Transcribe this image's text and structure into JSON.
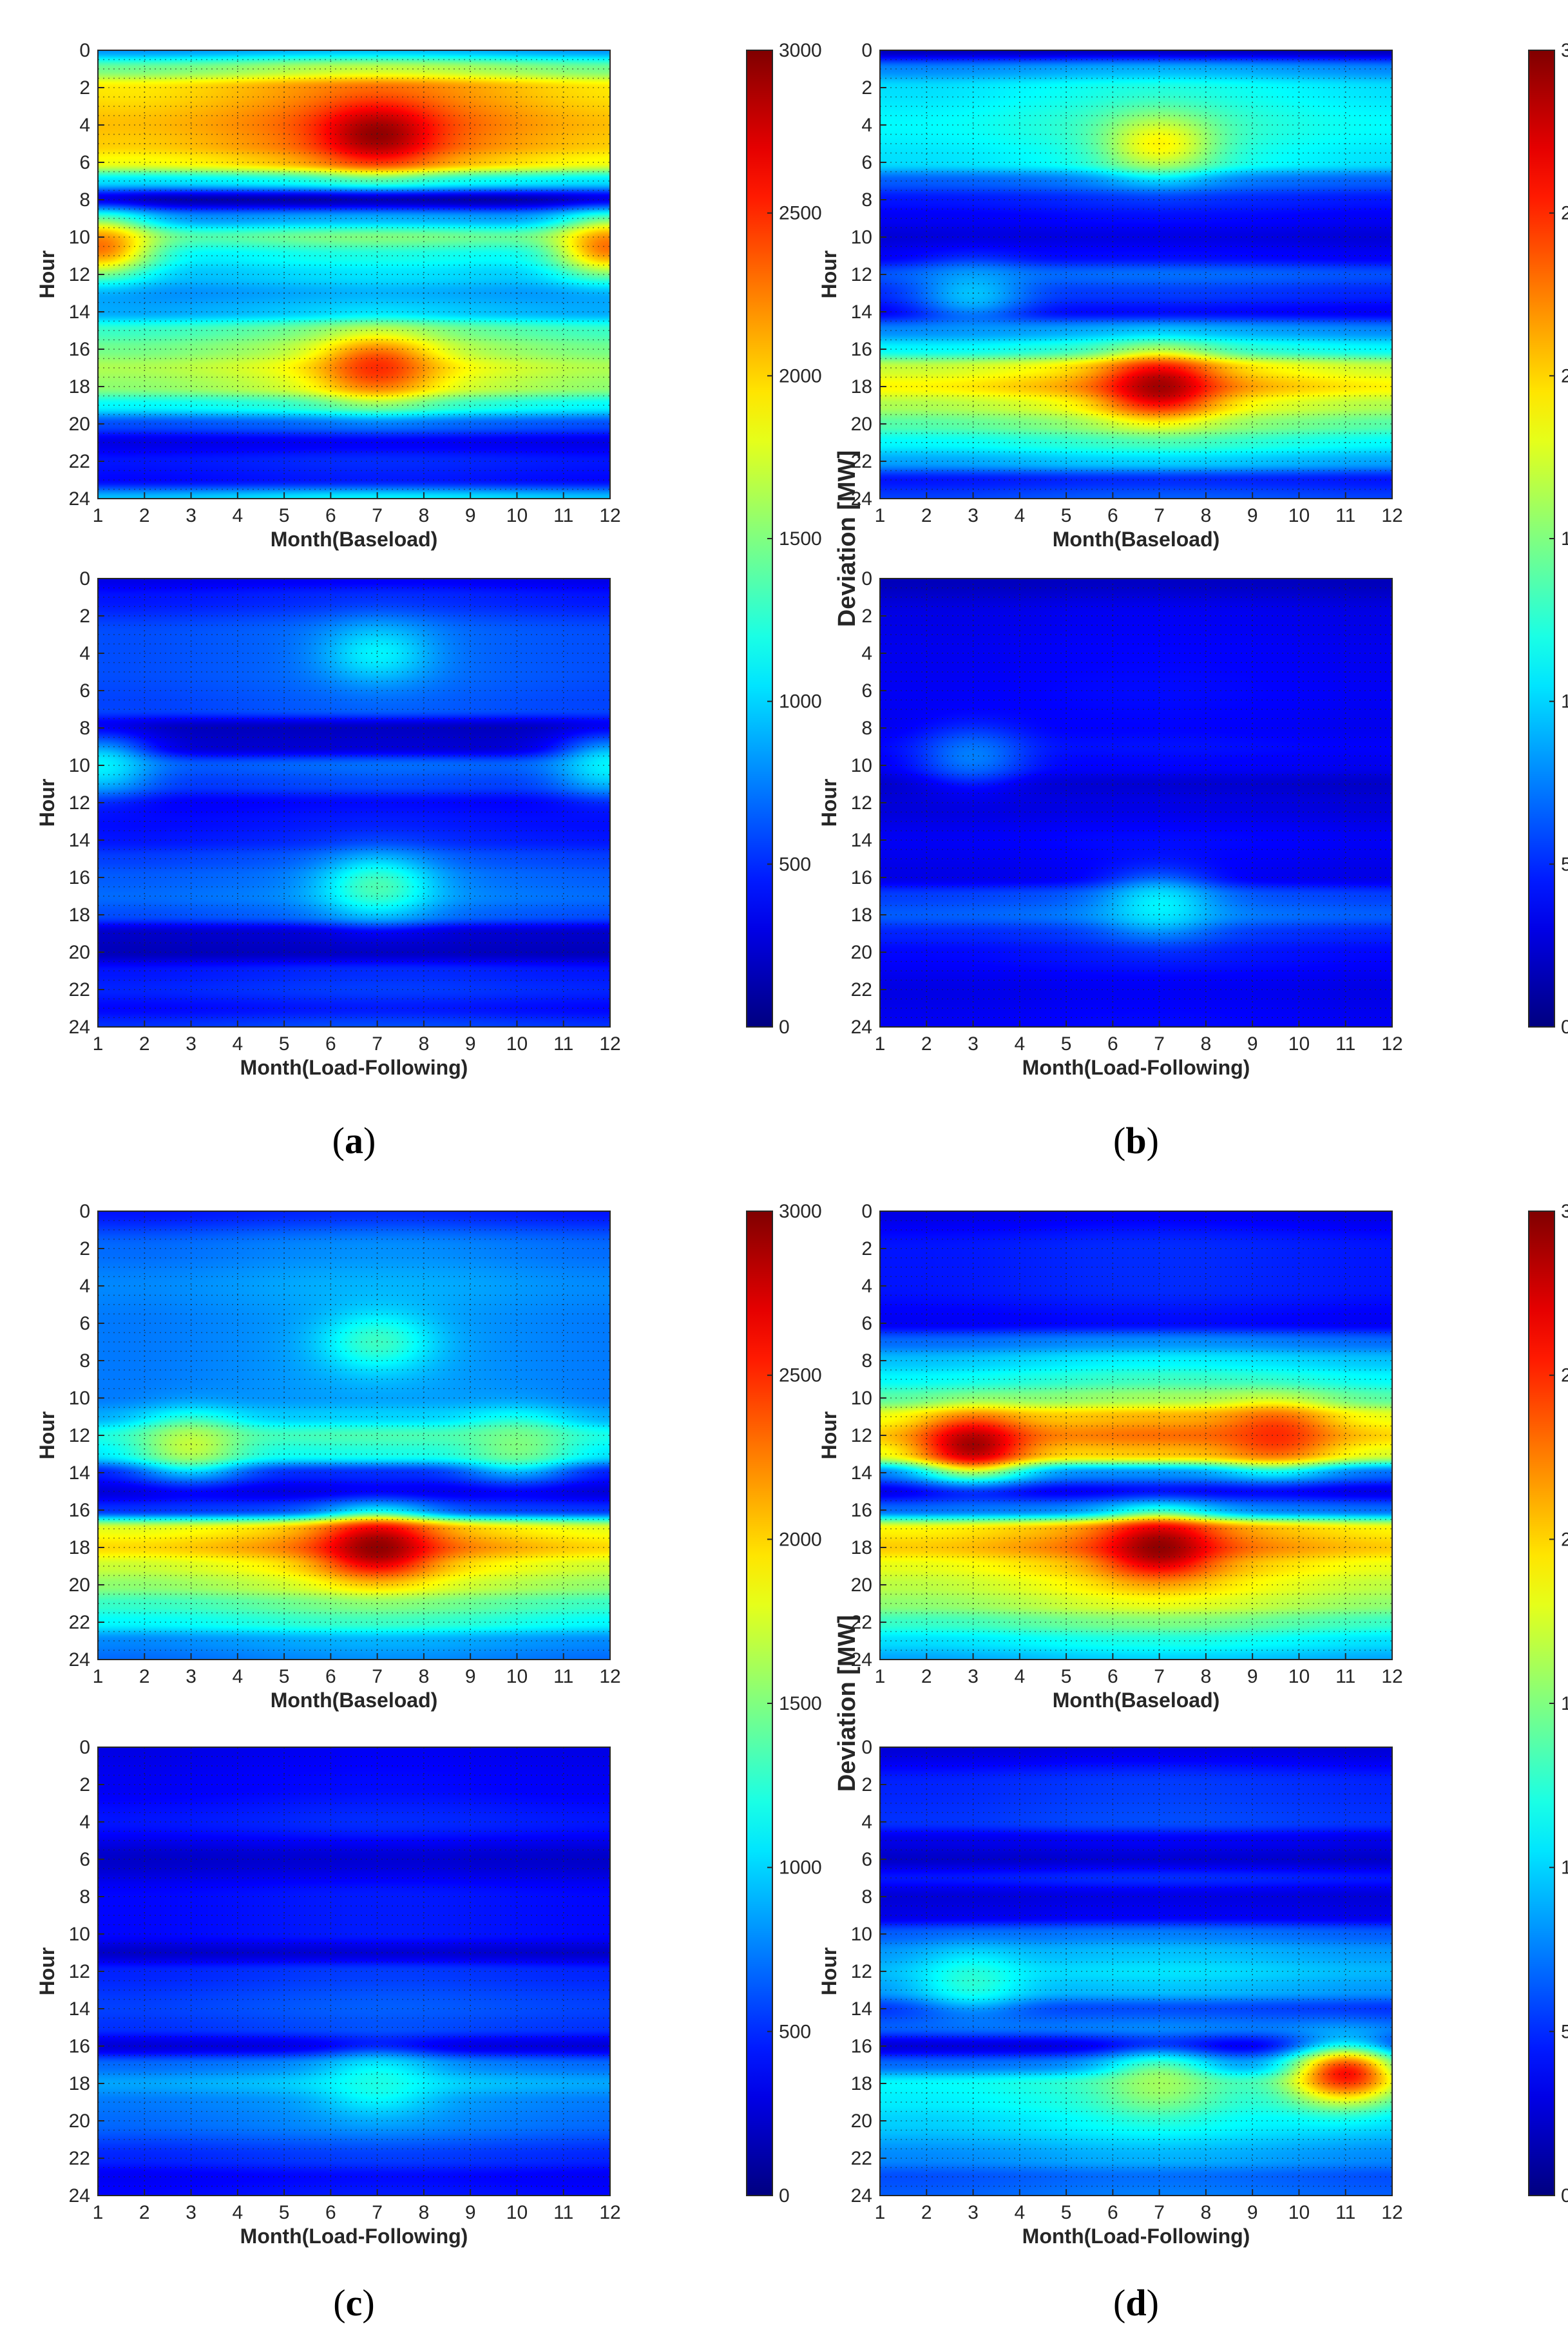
{
  "figure": {
    "colormap": "jet",
    "colorbar": {
      "label": "Deviation [MW]",
      "ticks": [
        "0",
        "500",
        "1000",
        "1500",
        "2000",
        "2500",
        "3000"
      ],
      "range": [
        0,
        3000
      ]
    },
    "y_ticks": [
      "0",
      "2",
      "4",
      "6",
      "8",
      "10",
      "12",
      "14",
      "16",
      "18",
      "20",
      "22",
      "24"
    ],
    "x_ticks": [
      "1",
      "2",
      "3",
      "4",
      "5",
      "6",
      "7",
      "8",
      "9",
      "10",
      "11",
      "12"
    ],
    "panel_labels": [
      {
        "open": "(",
        "letter": "a",
        "close": ")"
      },
      {
        "open": "(",
        "letter": "b",
        "close": ")"
      },
      {
        "open": "(",
        "letter": "c",
        "close": ")"
      },
      {
        "open": "(",
        "letter": "d",
        "close": ")"
      }
    ]
  },
  "chart_data": [
    {
      "type": "heatmap",
      "panel": "a",
      "title": "",
      "xlabel": "Month(Baseload)",
      "ylabel": "Hour",
      "xlim": [
        1,
        12
      ],
      "ylim": [
        0,
        24
      ],
      "zlim": [
        0,
        3000
      ],
      "hour_profile": [
        [
          0,
          950
        ],
        [
          1,
          1700
        ],
        [
          2,
          2250
        ],
        [
          4,
          2400
        ],
        [
          5,
          2350
        ],
        [
          6,
          2150
        ],
        [
          7,
          1200
        ],
        [
          8,
          150
        ],
        [
          9,
          900
        ],
        [
          10,
          1500
        ],
        [
          11,
          1200
        ],
        [
          12,
          1050
        ],
        [
          13,
          900
        ],
        [
          14,
          1000
        ],
        [
          15,
          1500
        ],
        [
          16,
          1700
        ],
        [
          17,
          1900
        ],
        [
          18,
          1800
        ],
        [
          19,
          1300
        ],
        [
          20,
          700
        ],
        [
          21,
          350
        ],
        [
          22,
          500
        ],
        [
          23,
          450
        ],
        [
          24,
          1100
        ]
      ],
      "hotspots": [
        {
          "month": 7,
          "hour": 4.5,
          "value": 2950
        },
        {
          "month": 7,
          "hour": 17,
          "value": 2500
        },
        {
          "month": 1,
          "hour": 10.5,
          "value": 2300
        },
        {
          "month": 12,
          "hour": 10.5,
          "value": 2300
        }
      ]
    },
    {
      "type": "heatmap",
      "panel": "a",
      "title": "",
      "xlabel": "Month(Load-Following)",
      "ylabel": "Hour",
      "xlim": [
        1,
        12
      ],
      "ylim": [
        0,
        24
      ],
      "zlim": [
        0,
        3000
      ],
      "hour_profile": [
        [
          0,
          350
        ],
        [
          1,
          500
        ],
        [
          3,
          700
        ],
        [
          5,
          700
        ],
        [
          7,
          650
        ],
        [
          8,
          200
        ],
        [
          9,
          250
        ],
        [
          10,
          700
        ],
        [
          11,
          600
        ],
        [
          12,
          400
        ],
        [
          13,
          450
        ],
        [
          14,
          500
        ],
        [
          15,
          650
        ],
        [
          16,
          750
        ],
        [
          17,
          800
        ],
        [
          18,
          700
        ],
        [
          19,
          250
        ],
        [
          20,
          200
        ],
        [
          21,
          500
        ],
        [
          22,
          550
        ],
        [
          23,
          450
        ],
        [
          24,
          600
        ]
      ],
      "hotspots": [
        {
          "month": 7,
          "hour": 4,
          "value": 1100
        },
        {
          "month": 7,
          "hour": 16.5,
          "value": 1350
        },
        {
          "month": 1,
          "hour": 10,
          "value": 1100
        },
        {
          "month": 12,
          "hour": 10,
          "value": 1100
        }
      ]
    },
    {
      "type": "heatmap",
      "panel": "b",
      "title": "",
      "xlabel": "Month(Baseload)",
      "ylabel": "Hour",
      "xlim": [
        1,
        12
      ],
      "ylim": [
        0,
        24
      ],
      "zlim": [
        0,
        3000
      ],
      "hour_profile": [
        [
          0,
          200
        ],
        [
          1,
          900
        ],
        [
          2,
          1200
        ],
        [
          4,
          1300
        ],
        [
          6,
          1200
        ],
        [
          7,
          750
        ],
        [
          8,
          500
        ],
        [
          9,
          400
        ],
        [
          10,
          300
        ],
        [
          11,
          400
        ],
        [
          12,
          700
        ],
        [
          13,
          550
        ],
        [
          14,
          400
        ],
        [
          15,
          900
        ],
        [
          16,
          1300
        ],
        [
          17,
          2000
        ],
        [
          18,
          2200
        ],
        [
          19,
          1900
        ],
        [
          20,
          1600
        ],
        [
          21,
          1300
        ],
        [
          22,
          1000
        ],
        [
          23,
          500
        ],
        [
          24,
          650
        ]
      ],
      "hotspots": [
        {
          "month": 7,
          "hour": 5,
          "value": 1900
        },
        {
          "month": 7,
          "hour": 18,
          "value": 2900
        },
        {
          "month": 3,
          "hour": 13,
          "value": 950
        }
      ]
    },
    {
      "type": "heatmap",
      "panel": "b",
      "title": "",
      "xlabel": "Month(Load-Following)",
      "ylabel": "Hour",
      "xlim": [
        1,
        12
      ],
      "ylim": [
        0,
        24
      ],
      "zlim": [
        0,
        3000
      ],
      "hour_profile": [
        [
          0,
          200
        ],
        [
          2,
          350
        ],
        [
          4,
          380
        ],
        [
          6,
          400
        ],
        [
          8,
          380
        ],
        [
          9,
          420
        ],
        [
          10,
          380
        ],
        [
          11,
          250
        ],
        [
          12,
          300
        ],
        [
          14,
          400
        ],
        [
          16,
          350
        ],
        [
          17,
          650
        ],
        [
          18,
          750
        ],
        [
          19,
          550
        ],
        [
          20,
          450
        ],
        [
          22,
          350
        ],
        [
          24,
          400
        ]
      ],
      "hotspots": [
        {
          "month": 7,
          "hour": 17.5,
          "value": 1100
        },
        {
          "month": 3,
          "hour": 9.5,
          "value": 750
        }
      ]
    },
    {
      "type": "heatmap",
      "panel": "c",
      "title": "",
      "xlabel": "Month(Baseload)",
      "ylabel": "Hour",
      "xlim": [
        1,
        12
      ],
      "ylim": [
        0,
        24
      ],
      "zlim": [
        0,
        3000
      ],
      "hour_profile": [
        [
          0,
          500
        ],
        [
          2,
          800
        ],
        [
          4,
          900
        ],
        [
          6,
          850
        ],
        [
          8,
          850
        ],
        [
          10,
          850
        ],
        [
          11,
          1000
        ],
        [
          12,
          1350
        ],
        [
          13,
          1200
        ],
        [
          14,
          500
        ],
        [
          15,
          300
        ],
        [
          16,
          600
        ],
        [
          17,
          2100
        ],
        [
          18,
          2300
        ],
        [
          19,
          2000
        ],
        [
          20,
          1800
        ],
        [
          21,
          1500
        ],
        [
          22,
          1300
        ],
        [
          23,
          900
        ],
        [
          24,
          800
        ]
      ],
      "hotspots": [
        {
          "month": 7,
          "hour": 18,
          "value": 2950
        },
        {
          "month": 7,
          "hour": 7,
          "value": 1300
        },
        {
          "month": 3,
          "hour": 12.5,
          "value": 1700
        },
        {
          "month": 10,
          "hour": 12.5,
          "value": 1500
        }
      ]
    },
    {
      "type": "heatmap",
      "panel": "c",
      "title": "",
      "xlabel": "Month(Load-Following)",
      "ylabel": "Hour",
      "xlim": [
        1,
        12
      ],
      "ylim": [
        0,
        24
      ],
      "zlim": [
        0,
        3000
      ],
      "hour_profile": [
        [
          0,
          350
        ],
        [
          2,
          400
        ],
        [
          4,
          500
        ],
        [
          6,
          250
        ],
        [
          8,
          450
        ],
        [
          10,
          450
        ],
        [
          11,
          250
        ],
        [
          12,
          550
        ],
        [
          14,
          650
        ],
        [
          15,
          600
        ],
        [
          16,
          300
        ],
        [
          17,
          800
        ],
        [
          18,
          1000
        ],
        [
          19,
          850
        ],
        [
          20,
          800
        ],
        [
          22,
          550
        ],
        [
          23,
          400
        ],
        [
          24,
          450
        ]
      ],
      "hotspots": [
        {
          "month": 7,
          "hour": 18,
          "value": 1200
        }
      ]
    },
    {
      "type": "heatmap",
      "panel": "d",
      "title": "",
      "xlabel": "Month(Baseload)",
      "ylabel": "Hour",
      "xlim": [
        1,
        12
      ],
      "ylim": [
        0,
        24
      ],
      "zlim": [
        0,
        3000
      ],
      "hour_profile": [
        [
          0,
          350
        ],
        [
          2,
          500
        ],
        [
          4,
          500
        ],
        [
          6,
          400
        ],
        [
          7,
          800
        ],
        [
          8,
          1100
        ],
        [
          9,
          1300
        ],
        [
          10,
          1600
        ],
        [
          11,
          2100
        ],
        [
          12,
          2300
        ],
        [
          13,
          2050
        ],
        [
          14,
          800
        ],
        [
          15,
          350
        ],
        [
          16,
          800
        ],
        [
          17,
          2200
        ],
        [
          18,
          2350
        ],
        [
          19,
          2100
        ],
        [
          20,
          1950
        ],
        [
          21,
          1800
        ],
        [
          22,
          1500
        ],
        [
          23,
          1200
        ],
        [
          24,
          1000
        ]
      ],
      "hotspots": [
        {
          "month": 3,
          "hour": 12.5,
          "value": 2900
        },
        {
          "month": 7,
          "hour": 18,
          "value": 2950
        },
        {
          "month": 9.5,
          "hour": 12,
          "value": 2500
        }
      ]
    },
    {
      "type": "heatmap",
      "panel": "d",
      "title": "",
      "xlabel": "Month(Load-Following)",
      "ylabel": "Hour",
      "xlim": [
        1,
        12
      ],
      "ylim": [
        0,
        24
      ],
      "zlim": [
        0,
        3000
      ],
      "hour_profile": [
        [
          0,
          300
        ],
        [
          2,
          550
        ],
        [
          4,
          600
        ],
        [
          5,
          350
        ],
        [
          6,
          250
        ],
        [
          7,
          500
        ],
        [
          8,
          300
        ],
        [
          9,
          350
        ],
        [
          10,
          750
        ],
        [
          11,
          950
        ],
        [
          12,
          1050
        ],
        [
          13,
          950
        ],
        [
          14,
          600
        ],
        [
          15,
          750
        ],
        [
          16,
          300
        ],
        [
          17,
          800
        ],
        [
          18,
          1300
        ],
        [
          19,
          1250
        ],
        [
          20,
          1150
        ],
        [
          22,
          900
        ],
        [
          23,
          700
        ],
        [
          24,
          750
        ]
      ],
      "hotspots": [
        {
          "month": 11,
          "hour": 17.5,
          "value": 2600
        },
        {
          "month": 7,
          "hour": 18,
          "value": 1600
        },
        {
          "month": 3,
          "hour": 12.5,
          "value": 1250
        }
      ]
    }
  ]
}
